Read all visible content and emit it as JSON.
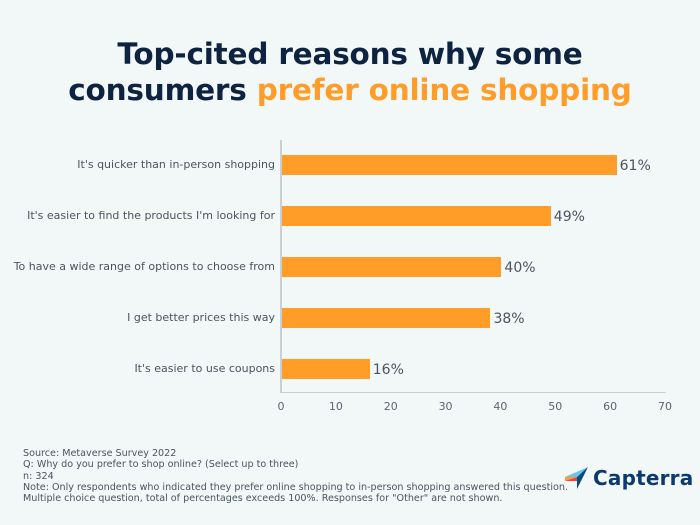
{
  "title": {
    "line1": "Top-cited reasons why some",
    "line2_plain": "consumers ",
    "line2_highlight": "prefer online shopping"
  },
  "colors": {
    "bar": "#ff9d28",
    "title": "#0d2340",
    "highlight": "#ff9d28",
    "background": "#f2f7f8"
  },
  "chart_data": {
    "type": "bar",
    "orientation": "horizontal",
    "title": "Top-cited reasons why some consumers prefer online shopping",
    "categories": [
      "It's quicker than in-person shopping",
      "It's easier to find the products I'm looking for",
      "To have a wide range of options to choose from",
      "I get better prices this way",
      "It's easier to use coupons"
    ],
    "values": [
      61,
      49,
      40,
      38,
      16
    ],
    "value_labels": [
      "61%",
      "49%",
      "40%",
      "38%",
      "16%"
    ],
    "xlabel": "",
    "ylabel": "",
    "xlim": [
      0,
      70
    ],
    "x_ticks": [
      "0",
      "10",
      "20",
      "30",
      "40",
      "50",
      "60",
      "70"
    ],
    "grid": false,
    "legend": null
  },
  "footer": {
    "source": "Source: Metaverse Survey 2022",
    "question": "Q: Why do you prefer to shop online? (Select up to three)",
    "n": "n: 324",
    "note1": "Note: Only respondents who indicated they prefer online shopping to in-person shopping answered this question.",
    "note2": "Multiple choice question, total of percentages exceeds 100%. Responses for \"Other\" are not shown."
  },
  "logo": {
    "text": "Capterra"
  }
}
